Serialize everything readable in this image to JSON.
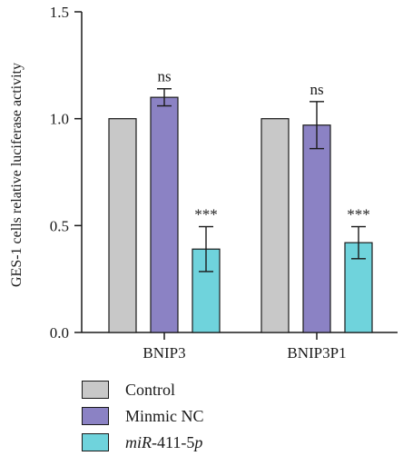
{
  "chart_data": {
    "type": "bar",
    "ylabel": "GES-1 cells relative luciferase activity",
    "ylim": [
      0,
      1.5
    ],
    "yticks": [
      "0.0",
      "0.5",
      "1.0",
      "1.5"
    ],
    "ytick_values": [
      0,
      0.5,
      1.0,
      1.5
    ],
    "categories": [
      "BNIP3",
      "BNIP3P1"
    ],
    "series": [
      {
        "name": "Control",
        "color": "#c8c8c8",
        "values": [
          1.0,
          1.0
        ],
        "errors": [
          null,
          null
        ],
        "annotations": [
          "",
          ""
        ]
      },
      {
        "name": "Minmic NC",
        "color": "#8b82c4",
        "values": [
          1.1,
          0.97
        ],
        "errors": [
          0.04,
          0.11
        ],
        "annotations": [
          "ns",
          "ns"
        ]
      },
      {
        "name": "miR-411-5p",
        "color": "#6fd3dc",
        "values": [
          0.39,
          0.42
        ],
        "errors": [
          0.105,
          0.075
        ],
        "annotations": [
          "***",
          "***"
        ]
      }
    ],
    "legend_position": "bottom-left"
  },
  "legend": {
    "items": [
      {
        "name": "Control",
        "color": "#c8c8c8",
        "italic": "",
        "rest": "Control"
      },
      {
        "name": "Minmic NC",
        "color": "#8b82c4",
        "italic": "",
        "rest": "Minmic NC"
      },
      {
        "name": "miR-411-5p",
        "color": "#6fd3dc",
        "italic": "miR",
        "rest": "-411-5p",
        "italic_tail": "p"
      }
    ]
  }
}
